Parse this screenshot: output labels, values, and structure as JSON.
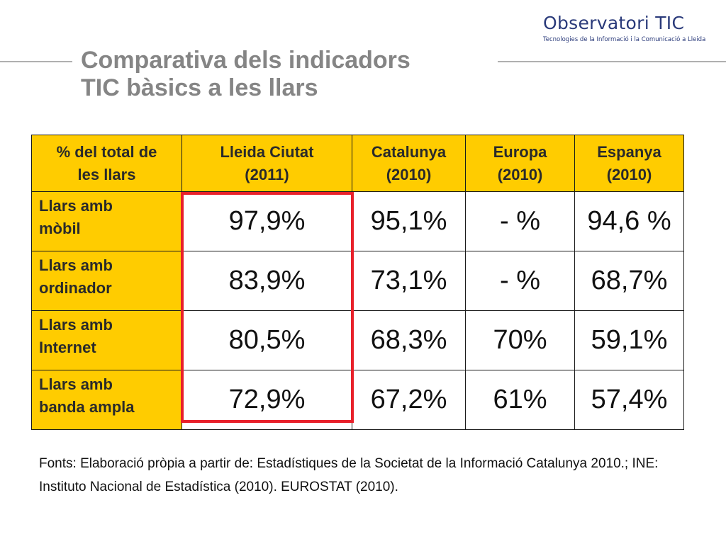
{
  "logo": {
    "name": "Observatori TIC",
    "tagline": "Tecnologies de la Informació i la Comunicació a Lleida"
  },
  "title": {
    "line1": "Comparativa dels indicadors",
    "line2": "TIC bàsics a les llars"
  },
  "table": {
    "headers": [
      [
        "% del total de",
        "les llars"
      ],
      [
        "Lleida Ciutat",
        "(2011)"
      ],
      [
        "Catalunya",
        "(2010)"
      ],
      [
        "Europa",
        "(2010)"
      ],
      [
        "Espanya",
        "(2010)"
      ]
    ],
    "rows": [
      {
        "label": [
          "Llars amb",
          "mòbil"
        ],
        "values": [
          "97,9%",
          "95,1%",
          "- %",
          "94,6 %"
        ]
      },
      {
        "label": [
          "Llars amb",
          "ordinador"
        ],
        "values": [
          "83,9%",
          "73,1%",
          "- %",
          "68,7%"
        ]
      },
      {
        "label": [
          "Llars amb",
          "Internet"
        ],
        "values": [
          "80,5%",
          "68,3%",
          "70%",
          "59,1%"
        ]
      },
      {
        "label": [
          "Llars amb",
          "banda ampla"
        ],
        "values": [
          "72,9%",
          "67,2%",
          "61%",
          "57,4%"
        ]
      }
    ],
    "highlight_color": "#e8202a",
    "header_color": "#ffcc00"
  },
  "sources": "Fonts: Elaboració pròpia a partir de: Estadístiques de la Societat de la Informació Catalunya 2010.; INE: Instituto Nacional de Estadística (2010). EUROSTAT (2010)."
}
